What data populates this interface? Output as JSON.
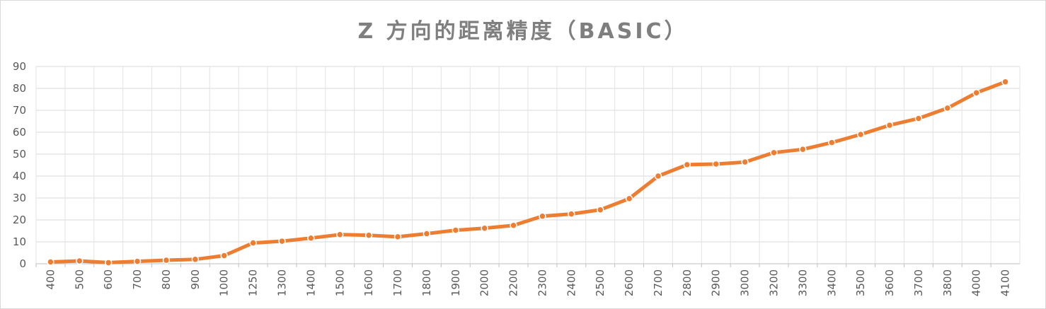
{
  "chart_data": {
    "type": "line",
    "title": "Z 方向的距离精度（BASIC）",
    "xlabel": "",
    "ylabel": "",
    "categories": [
      "400",
      "500",
      "600",
      "700",
      "800",
      "900",
      "1000",
      "1250",
      "1300",
      "1400",
      "1500",
      "1600",
      "1700",
      "1800",
      "1900",
      "2000",
      "2200",
      "2300",
      "2400",
      "2500",
      "2600",
      "2700",
      "2800",
      "2900",
      "3000",
      "3200",
      "3300",
      "3400",
      "3500",
      "3600",
      "3700",
      "3800",
      "4000",
      "4100"
    ],
    "series": [
      {
        "values": [
          0.8,
          1.3,
          0.5,
          1.1,
          1.6,
          2.0,
          3.7,
          9.5,
          10.3,
          11.7,
          13.3,
          13.0,
          12.3,
          13.7,
          15.3,
          16.2,
          17.5,
          21.7,
          22.7,
          24.6,
          29.7,
          40.0,
          45.2,
          45.5,
          46.4,
          50.7,
          52.2,
          55.3,
          59.0,
          63.2,
          66.3,
          71.0,
          78.0,
          83.0
        ],
        "color": "#ed7d31"
      }
    ],
    "ylim": [
      0,
      90
    ],
    "yticks": [
      0,
      10,
      20,
      30,
      40,
      50,
      60,
      70,
      80,
      90
    ],
    "grid": true,
    "legend": "none"
  }
}
